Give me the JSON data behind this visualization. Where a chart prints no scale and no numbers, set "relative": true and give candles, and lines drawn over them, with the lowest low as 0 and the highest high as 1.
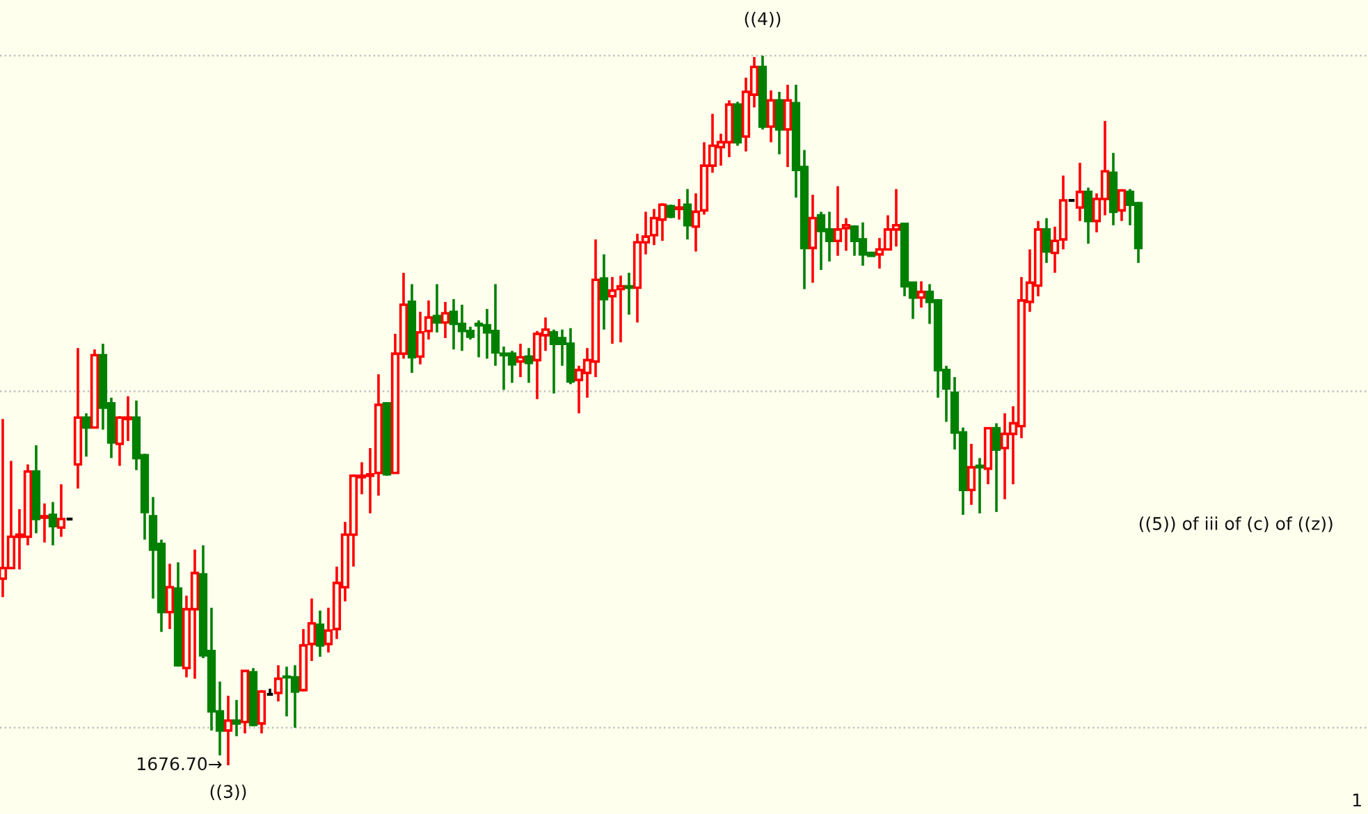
{
  "chart_data": {
    "type": "candlestick",
    "relative": true,
    "categories": [
      null,
      null,
      null,
      null,
      null,
      null,
      null,
      null,
      null,
      null,
      null,
      null,
      null,
      null,
      null,
      null,
      null,
      null,
      null,
      null,
      null,
      null,
      null,
      null,
      null,
      null,
      null,
      null,
      null,
      null,
      null,
      null,
      null,
      null,
      null,
      null,
      null,
      null,
      null,
      null,
      null,
      null,
      null,
      null,
      null,
      null,
      null,
      null,
      null,
      null,
      null,
      null,
      null,
      null,
      null,
      null,
      null,
      null,
      null,
      null,
      null,
      null,
      null,
      null,
      null,
      null,
      null,
      null,
      null,
      null,
      null,
      null,
      null,
      null,
      null,
      null,
      null,
      null,
      null,
      null,
      null,
      null,
      null,
      null,
      null,
      null,
      null,
      null,
      null,
      null,
      null,
      null,
      null,
      null,
      null,
      null,
      null,
      null,
      null,
      null,
      null,
      null,
      null,
      null,
      null,
      null,
      null,
      null,
      null,
      null,
      null,
      null,
      null,
      null,
      null,
      null,
      null,
      null,
      null,
      null,
      null,
      null,
      null,
      null,
      null,
      null,
      null,
      null,
      null,
      null,
      null,
      null,
      null,
      null,
      null,
      null,
      null
    ],
    "ohlc": [
      [
        0.263,
        0.488,
        0.237,
        0.278
      ],
      [
        0.278,
        0.429,
        0.278,
        0.322
      ],
      [
        0.322,
        0.361,
        0.276,
        0.325
      ],
      [
        0.322,
        0.424,
        0.31,
        0.414
      ],
      [
        0.414,
        0.451,
        0.327,
        0.347
      ],
      [
        0.349,
        0.369,
        0.314,
        0.351
      ],
      [
        0.353,
        0.371,
        0.31,
        0.337
      ],
      [
        0.335,
        0.396,
        0.322,
        0.347
      ],
      [
        0.347,
        0.347,
        0.347,
        0.347
      ],
      [
        0.424,
        0.588,
        0.39,
        0.49
      ],
      [
        0.49,
        0.496,
        0.435,
        0.476
      ],
      [
        0.476,
        0.586,
        0.475,
        0.578
      ],
      [
        0.578,
        0.594,
        0.473,
        0.504
      ],
      [
        0.51,
        0.518,
        0.433,
        0.455
      ],
      [
        0.453,
        0.492,
        0.422,
        0.49
      ],
      [
        0.488,
        0.52,
        0.457,
        0.49
      ],
      [
        0.49,
        0.514,
        0.416,
        0.433
      ],
      [
        0.437,
        0.439,
        0.318,
        0.357
      ],
      [
        0.351,
        0.378,
        0.235,
        0.304
      ],
      [
        0.312,
        0.318,
        0.188,
        0.216
      ],
      [
        0.216,
        0.284,
        0.192,
        0.251
      ],
      [
        0.249,
        0.286,
        0.139,
        0.141
      ],
      [
        0.137,
        0.239,
        0.124,
        0.22
      ],
      [
        0.22,
        0.304,
        0.122,
        0.271
      ],
      [
        0.269,
        0.31,
        0.151,
        0.155
      ],
      [
        0.161,
        0.222,
        0.049,
        0.076
      ],
      [
        0.076,
        0.118,
        0.014,
        0.049
      ],
      [
        0.049,
        0.098,
        0,
        0.063
      ],
      [
        0.063,
        0.092,
        0.041,
        0.059
      ],
      [
        0.061,
        0.133,
        0.045,
        0.133
      ],
      [
        0.131,
        0.137,
        0.055,
        0.057
      ],
      [
        0.059,
        0.106,
        0.045,
        0.104
      ],
      [
        0.1,
        0.108,
        0.1,
        0.1
      ],
      [
        0.102,
        0.141,
        0.09,
        0.122
      ],
      [
        0.125,
        0.139,
        0.069,
        0.124
      ],
      [
        0.124,
        0.141,
        0.053,
        0.104
      ],
      [
        0.106,
        0.192,
        0.104,
        0.169
      ],
      [
        0.171,
        0.235,
        0.147,
        0.2
      ],
      [
        0.198,
        0.218,
        0.153,
        0.169
      ],
      [
        0.171,
        0.222,
        0.159,
        0.19
      ],
      [
        0.192,
        0.28,
        0.178,
        0.257
      ],
      [
        0.251,
        0.343,
        0.231,
        0.325
      ],
      [
        0.325,
        0.41,
        0.28,
        0.408
      ],
      [
        0.406,
        0.427,
        0.382,
        0.408
      ],
      [
        0.408,
        0.447,
        0.355,
        0.41
      ],
      [
        0.412,
        0.551,
        0.38,
        0.508
      ],
      [
        0.51,
        0.51,
        0.408,
        0.41
      ],
      [
        0.412,
        0.608,
        0.412,
        0.58
      ],
      [
        0.58,
        0.694,
        0.573,
        0.649
      ],
      [
        0.653,
        0.678,
        0.553,
        0.575
      ],
      [
        0.576,
        0.639,
        0.565,
        0.61
      ],
      [
        0.612,
        0.655,
        0.6,
        0.631
      ],
      [
        0.633,
        0.678,
        0.61,
        0.624
      ],
      [
        0.624,
        0.653,
        0.602,
        0.637
      ],
      [
        0.639,
        0.657,
        0.586,
        0.622
      ],
      [
        0.622,
        0.649,
        0.584,
        0.612
      ],
      [
        0.612,
        0.618,
        0.6,
        0.604
      ],
      [
        0.622,
        0.627,
        0.575,
        0.62
      ],
      [
        0.62,
        0.643,
        0.573,
        0.61
      ],
      [
        0.612,
        0.678,
        0.563,
        0.582
      ],
      [
        0.58,
        0.59,
        0.529,
        0.578
      ],
      [
        0.58,
        0.584,
        0.539,
        0.565
      ],
      [
        0.569,
        0.594,
        0.547,
        0.575
      ],
      [
        0.576,
        0.588,
        0.539,
        0.567
      ],
      [
        0.571,
        0.612,
        0.516,
        0.608
      ],
      [
        0.606,
        0.631,
        0.584,
        0.614
      ],
      [
        0.61,
        0.614,
        0.524,
        0.594
      ],
      [
        0.602,
        0.614,
        0.563,
        0.594
      ],
      [
        0.594,
        0.616,
        0.537,
        0.541
      ],
      [
        0.543,
        0.563,
        0.496,
        0.557
      ],
      [
        0.553,
        0.588,
        0.518,
        0.571
      ],
      [
        0.569,
        0.741,
        0.547,
        0.684
      ],
      [
        0.686,
        0.72,
        0.614,
        0.657
      ],
      [
        0.661,
        0.688,
        0.594,
        0.669
      ],
      [
        0.671,
        0.69,
        0.596,
        0.675
      ],
      [
        0.675,
        0.694,
        0.635,
        0.673
      ],
      [
        0.673,
        0.749,
        0.624,
        0.737
      ],
      [
        0.737,
        0.78,
        0.72,
        0.745
      ],
      [
        0.747,
        0.784,
        0.733,
        0.771
      ],
      [
        0.769,
        0.792,
        0.739,
        0.79
      ],
      [
        0.788,
        0.79,
        0.771,
        0.773
      ],
      [
        0.784,
        0.798,
        0.769,
        0.786
      ],
      [
        0.79,
        0.812,
        0.741,
        0.761
      ],
      [
        0.759,
        0.806,
        0.724,
        0.78
      ],
      [
        0.782,
        0.878,
        0.776,
        0.845
      ],
      [
        0.845,
        0.918,
        0.835,
        0.873
      ],
      [
        0.871,
        0.89,
        0.845,
        0.878
      ],
      [
        0.878,
        0.937,
        0.857,
        0.931
      ],
      [
        0.931,
        0.935,
        0.873,
        0.878
      ],
      [
        0.886,
        0.969,
        0.865,
        0.949
      ],
      [
        0.945,
        0.998,
        0.927,
        0.984
      ],
      [
        0.984,
        1,
        0.896,
        0.9
      ],
      [
        0.9,
        0.951,
        0.878,
        0.937
      ],
      [
        0.937,
        0.949,
        0.861,
        0.896
      ],
      [
        0.896,
        0.959,
        0.843,
        0.937
      ],
      [
        0.933,
        0.959,
        0.8,
        0.839
      ],
      [
        0.843,
        0.867,
        0.671,
        0.729
      ],
      [
        0.729,
        0.804,
        0.68,
        0.771
      ],
      [
        0.775,
        0.78,
        0.698,
        0.753
      ],
      [
        0.755,
        0.78,
        0.71,
        0.739
      ],
      [
        0.739,
        0.816,
        0.718,
        0.755
      ],
      [
        0.757,
        0.771,
        0.725,
        0.761
      ],
      [
        0.759,
        0.761,
        0.718,
        0.739
      ],
      [
        0.741,
        0.765,
        0.704,
        0.72
      ],
      [
        0.722,
        0.722,
        0.718,
        0.718
      ],
      [
        0.72,
        0.743,
        0.7,
        0.727
      ],
      [
        0.727,
        0.775,
        0.727,
        0.755
      ],
      [
        0.755,
        0.812,
        0.731,
        0.761
      ],
      [
        0.763,
        0.763,
        0.661,
        0.675
      ],
      [
        0.68,
        0.68,
        0.629,
        0.659
      ],
      [
        0.659,
        0.682,
        0.645,
        0.667
      ],
      [
        0.667,
        0.678,
        0.622,
        0.653
      ],
      [
        0.655,
        0.657,
        0.518,
        0.557
      ],
      [
        0.557,
        0.563,
        0.484,
        0.531
      ],
      [
        0.525,
        0.547,
        0.445,
        0.469
      ],
      [
        0.469,
        0.476,
        0.353,
        0.388
      ],
      [
        0.388,
        0.453,
        0.367,
        0.42
      ],
      [
        0.422,
        0.433,
        0.355,
        0.42
      ],
      [
        0.418,
        0.475,
        0.396,
        0.475
      ],
      [
        0.475,
        0.482,
        0.357,
        0.445
      ],
      [
        0.447,
        0.496,
        0.375,
        0.467
      ],
      [
        0.467,
        0.506,
        0.396,
        0.482
      ],
      [
        0.478,
        0.688,
        0.461,
        0.655
      ],
      [
        0.653,
        0.727,
        0.639,
        0.68
      ],
      [
        0.676,
        0.767,
        0.661,
        0.755
      ],
      [
        0.755,
        0.771,
        0.708,
        0.724
      ],
      [
        0.722,
        0.759,
        0.694,
        0.739
      ],
      [
        0.741,
        0.831,
        0.727,
        0.796
      ],
      [
        0.796,
        0.796,
        0.796,
        0.796
      ],
      [
        0.786,
        0.849,
        0.767,
        0.808
      ],
      [
        0.808,
        0.814,
        0.735,
        0.767
      ],
      [
        0.767,
        0.806,
        0.751,
        0.798
      ],
      [
        0.798,
        0.908,
        0.775,
        0.837
      ],
      [
        0.835,
        0.863,
        0.761,
        0.78
      ],
      [
        0.782,
        0.812,
        0.767,
        0.81
      ],
      [
        0.808,
        0.812,
        0.761,
        0.79
      ],
      [
        0.792,
        0.794,
        0.708,
        0.729
      ]
    ],
    "colors": [
      "#ff0000",
      "#ff0000",
      "#ff0000",
      "#ff0000",
      "#008000",
      "#ff0000",
      "#008000",
      "#ff0000",
      "#000000",
      "#ff0000",
      "#008000",
      "#ff0000",
      "#008000",
      "#008000",
      "#ff0000",
      "#ff0000",
      "#008000",
      "#008000",
      "#008000",
      "#008000",
      "#ff0000",
      "#008000",
      "#ff0000",
      "#ff0000",
      "#008000",
      "#008000",
      "#008000",
      "#ff0000",
      "#008000",
      "#ff0000",
      "#008000",
      "#ff0000",
      "#000000",
      "#ff0000",
      "#008000",
      "#008000",
      "#ff0000",
      "#ff0000",
      "#008000",
      "#ff0000",
      "#ff0000",
      "#ff0000",
      "#ff0000",
      "#ff0000",
      "#ff0000",
      "#ff0000",
      "#008000",
      "#ff0000",
      "#ff0000",
      "#008000",
      "#ff0000",
      "#ff0000",
      "#008000",
      "#ff0000",
      "#008000",
      "#008000",
      "#008000",
      "#008000",
      "#008000",
      "#008000",
      "#008000",
      "#008000",
      "#ff0000",
      "#008000",
      "#ff0000",
      "#ff0000",
      "#008000",
      "#008000",
      "#008000",
      "#ff0000",
      "#ff0000",
      "#ff0000",
      "#008000",
      "#ff0000",
      "#ff0000",
      "#008000",
      "#ff0000",
      "#ff0000",
      "#ff0000",
      "#ff0000",
      "#008000",
      "#ff0000",
      "#008000",
      "#ff0000",
      "#ff0000",
      "#ff0000",
      "#ff0000",
      "#ff0000",
      "#008000",
      "#ff0000",
      "#ff0000",
      "#008000",
      "#ff0000",
      "#008000",
      "#ff0000",
      "#008000",
      "#008000",
      "#ff0000",
      "#008000",
      "#008000",
      "#ff0000",
      "#ff0000",
      "#008000",
      "#008000",
      "#008000",
      "#ff0000",
      "#ff0000",
      "#ff0000",
      "#008000",
      "#008000",
      "#ff0000",
      "#008000",
      "#008000",
      "#008000",
      "#008000",
      "#008000",
      "#ff0000",
      "#008000",
      "#ff0000",
      "#008000",
      "#ff0000",
      "#ff0000",
      "#ff0000",
      "#ff0000",
      "#ff0000",
      "#008000",
      "#ff0000",
      "#ff0000",
      "#000000",
      "#ff0000",
      "#008000",
      "#ff0000",
      "#ff0000",
      "#008000",
      "#ff0000",
      "#008000",
      "#008000"
    ],
    "ref_lines": [
      {
        "axis": "y",
        "value": 1.0,
        "color": "#c0c0c0",
        "line_style": "dotted"
      },
      {
        "axis": "y",
        "value": 0.527,
        "color": "#c0c0c0",
        "line_style": "dotted"
      },
      {
        "axis": "y",
        "value": 0.053,
        "color": "#c0c0c0",
        "line_style": "dotted"
      }
    ],
    "annotations": [
      "((4))",
      "1676.70→",
      "((3))",
      "((5)) of iii of (c) of ((z))",
      "1"
    ]
  }
}
